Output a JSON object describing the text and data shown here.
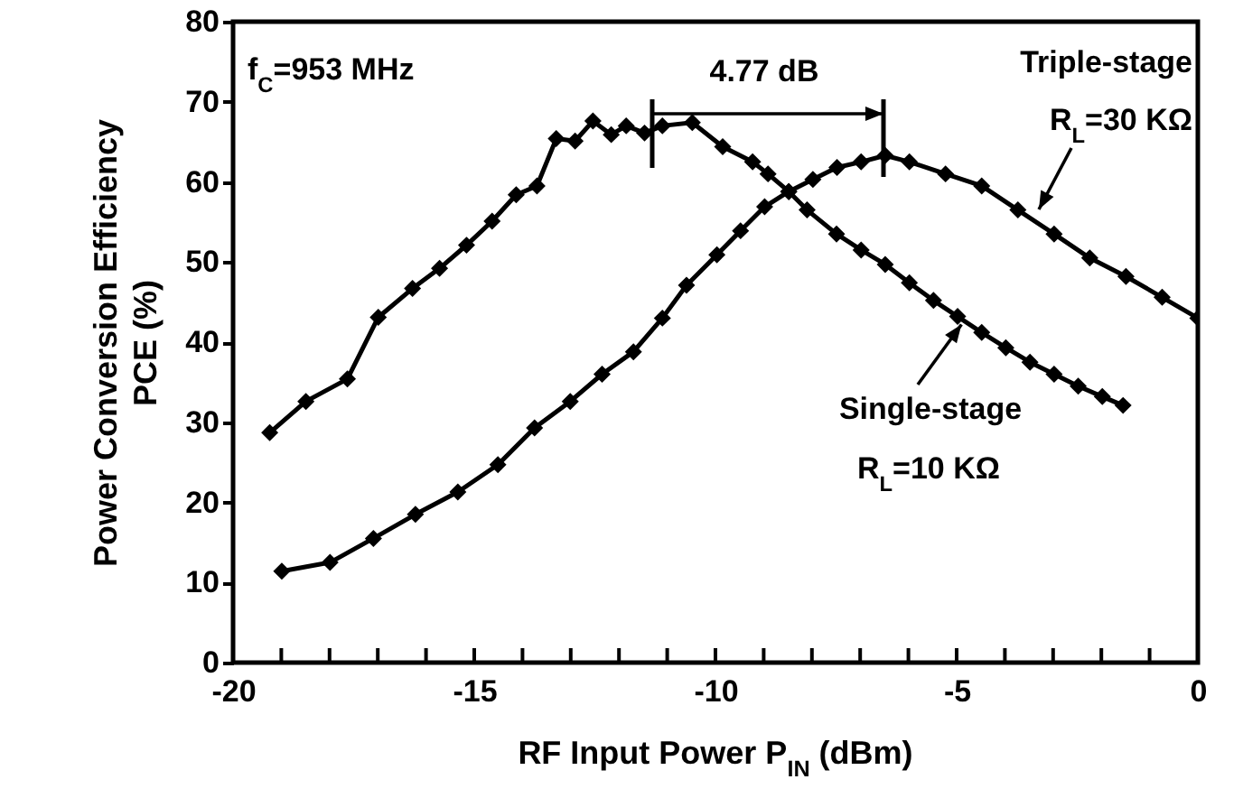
{
  "chart_data": {
    "type": "line",
    "xlabel": "RF Input Power P$_{IN}$ (dBm)",
    "ylabel": "Power Conversion Efficiency\nPCE (%)",
    "xlim": [
      -20,
      0
    ],
    "ylim": [
      0,
      80
    ],
    "xticks": [
      -20,
      {
        "value": -19,
        "label": null
      },
      {
        "value": -18,
        "label": null
      },
      {
        "value": -17,
        "label": null
      },
      {
        "value": -16,
        "label": null
      },
      -15,
      {
        "value": -14,
        "label": null
      },
      {
        "value": -13,
        "label": null
      },
      {
        "value": -12,
        "label": null
      },
      {
        "value": -11,
        "label": null
      },
      -10,
      {
        "value": -9,
        "label": null
      },
      {
        "value": -8,
        "label": null
      },
      {
        "value": -7,
        "label": null
      },
      {
        "value": -6,
        "label": null
      },
      -5,
      {
        "value": -4,
        "label": null
      },
      {
        "value": -3,
        "label": null
      },
      {
        "value": -2,
        "label": null
      },
      {
        "value": -1,
        "label": null
      },
      0
    ],
    "yticks": [
      0,
      10,
      20,
      30,
      40,
      50,
      60,
      70,
      80
    ],
    "grid": false,
    "marker": "diamond",
    "line_style": "solid",
    "series": [
      {
        "color": "#000000",
        "x": [
          -19.24,
          -18.49,
          -17.63,
          -16.99,
          -16.28,
          -15.72,
          -15.16,
          -14.63,
          -14.13,
          -13.7,
          -13.3,
          -12.91,
          -12.54,
          -12.16,
          -11.85,
          -11.47,
          -11.1,
          -10.48,
          -9.85,
          -9.23,
          -8.91,
          -8.48,
          -8.1,
          -7.49,
          -6.98,
          -6.48,
          -5.98,
          -5.48,
          -4.98,
          -4.48,
          -3.98,
          -3.48,
          -2.98,
          -2.48,
          -1.98,
          -1.55
        ],
        "values": [
          28.7,
          32.6,
          35.4,
          43.1,
          46.7,
          49.2,
          52.1,
          55.1,
          58.4,
          59.5,
          65.4,
          65.1,
          67.6,
          65.9,
          67.0,
          66.1,
          67.0,
          67.4,
          64.4,
          62.5,
          61.0,
          58.8,
          56.5,
          53.5,
          51.5,
          49.7,
          47.4,
          45.2,
          43.2,
          41.2,
          39.3,
          37.5,
          36.0,
          34.5,
          33.2,
          32.1
        ]
      },
      {
        "color": "#000000",
        "x": [
          -18.99,
          -17.99,
          -17.09,
          -16.22,
          -15.34,
          -14.51,
          -13.75,
          -13.01,
          -12.35,
          -11.7,
          -11.1,
          -10.6,
          -9.97,
          -9.48,
          -8.98,
          -8.48,
          -7.98,
          -7.48,
          -6.98,
          -6.48,
          -5.98,
          -5.23,
          -4.48,
          -3.73,
          -2.98,
          -2.24,
          -1.49,
          -0.74,
          0
        ],
        "values": [
          11.4,
          12.5,
          15.5,
          18.5,
          21.3,
          24.7,
          29.3,
          32.6,
          36.0,
          38.8,
          43.0,
          47.1,
          50.9,
          53.9,
          56.9,
          58.8,
          60.3,
          61.8,
          62.5,
          63.3,
          62.5,
          61.0,
          59.5,
          56.5,
          53.5,
          50.5,
          48.2,
          45.6,
          43.0
        ]
      }
    ],
    "annotations": [
      "f$_{C}$=953 MHz",
      "4.77 dB",
      "Triple-stage",
      "R$_{L}$=30 KΩ",
      {
        "text": "Single-stage",
        "x": -4.9,
        "y": 42.2
      },
      "R$_{L}$=10 KΩ"
    ]
  }
}
